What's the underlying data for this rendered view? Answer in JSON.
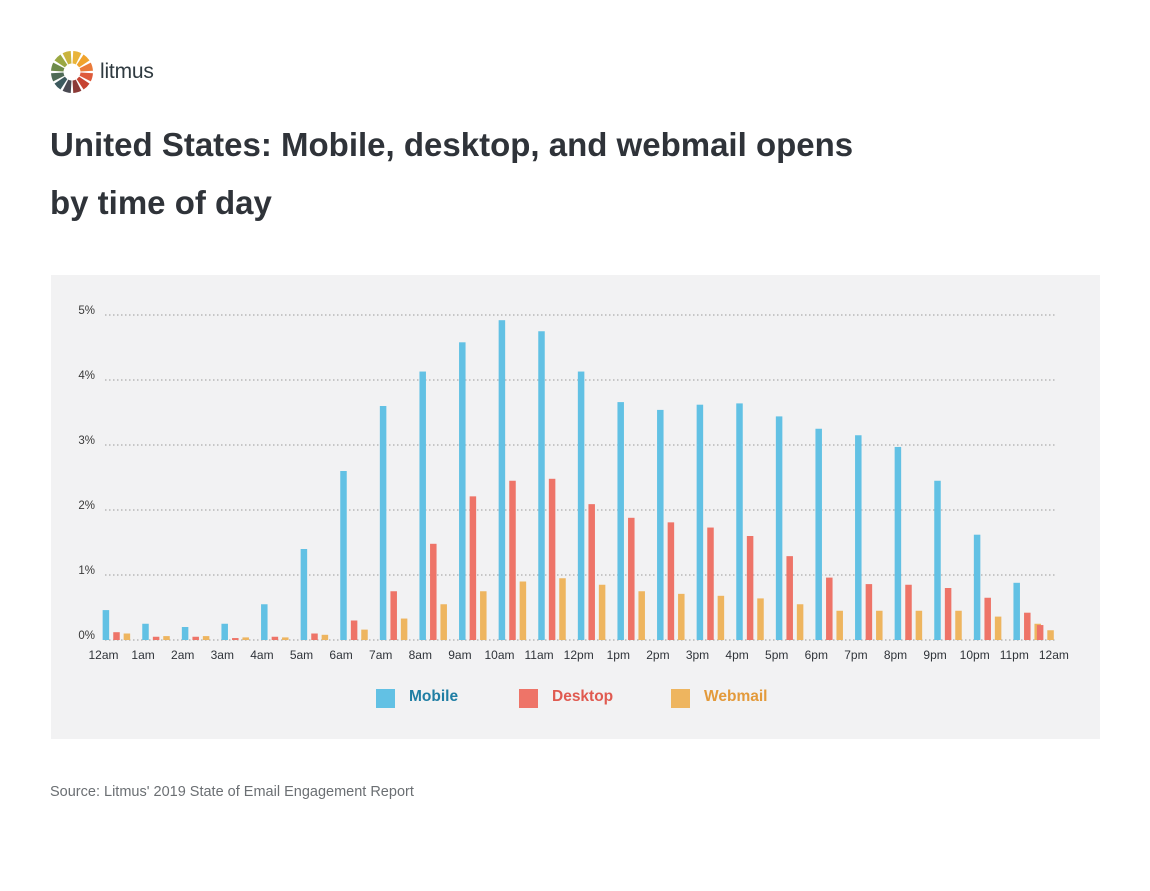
{
  "brand": {
    "logo_text": "litmus"
  },
  "title": "United States: Mobile, desktop, and webmail opens by time of day",
  "source": "Source: Litmus' 2019 State of Email Engagement Report",
  "colors": {
    "mobile": "#62c1e4",
    "desktop": "#ee7468",
    "webmail": "#eeb55f"
  },
  "legend_text_colors": {
    "mobile": "#1f7ea4",
    "desktop": "#e05a50",
    "webmail": "#e39a3b"
  },
  "chart_data": {
    "type": "bar",
    "categories": [
      "12am",
      "1am",
      "2am",
      "3am",
      "4am",
      "5am",
      "6am",
      "7am",
      "8am",
      "9am",
      "10am",
      "11am",
      "12pm",
      "1pm",
      "2pm",
      "3pm",
      "4pm",
      "5pm",
      "6pm",
      "7pm",
      "8pm",
      "9pm",
      "10pm",
      "11pm"
    ],
    "x_tick_labels": [
      "12am",
      "1am",
      "2am",
      "3am",
      "4am",
      "5am",
      "6am",
      "7am",
      "8am",
      "9am",
      "10am",
      "11am",
      "12pm",
      "1pm",
      "2pm",
      "3pm",
      "4pm",
      "5pm",
      "6pm",
      "7pm",
      "8pm",
      "9pm",
      "10pm",
      "11pm",
      "12am"
    ],
    "y_ticks": [
      "0%",
      "1%",
      "2%",
      "3%",
      "4%",
      "5%"
    ],
    "ylim": [
      0,
      5
    ],
    "grid": "horizontal dotted",
    "legend_position": "bottom-center",
    "series": [
      {
        "name": "Mobile",
        "values": [
          0.46,
          0.25,
          0.2,
          0.25,
          0.55,
          1.4,
          2.6,
          3.6,
          4.13,
          4.58,
          4.92,
          4.75,
          4.13,
          3.66,
          3.54,
          3.62,
          3.64,
          3.44,
          3.25,
          3.15,
          2.97,
          2.45,
          1.62,
          0.88
        ]
      },
      {
        "name": "Desktop",
        "values": [
          0.12,
          0.05,
          0.05,
          0.03,
          0.05,
          0.1,
          0.3,
          0.75,
          1.48,
          2.21,
          2.45,
          2.48,
          2.09,
          1.88,
          1.81,
          1.73,
          1.6,
          1.29,
          0.96,
          0.86,
          0.85,
          0.8,
          0.65,
          0.42
        ]
      },
      {
        "name": "Webmail",
        "values": [
          0.1,
          0.06,
          0.06,
          0.04,
          0.04,
          0.08,
          0.16,
          0.33,
          0.55,
          0.75,
          0.9,
          0.95,
          0.85,
          0.75,
          0.71,
          0.68,
          0.64,
          0.55,
          0.45,
          0.45,
          0.45,
          0.45,
          0.36,
          0.25
        ]
      }
    ],
    "trailing_desktop_webmail": {
      "desktop": 0.23,
      "webmail": 0.15
    }
  }
}
